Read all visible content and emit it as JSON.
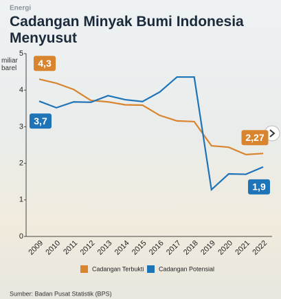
{
  "chart_data": {
    "type": "line",
    "kicker": "Energi",
    "title": "Cadangan Minyak Bumi Indonesia Menyusut",
    "y_label": "miliar barel",
    "source": "Sumber: Badan Pusat Statistik (BPS)",
    "categories": [
      "2009",
      "2010",
      "2011",
      "2012",
      "2013",
      "2014",
      "2015",
      "2016",
      "2017",
      "2018",
      "2019",
      "2020",
      "2021",
      "2022"
    ],
    "series": [
      {
        "name": "Cadangan Terbukti",
        "color": "#d9852f",
        "values": [
          4.3,
          4.19,
          4.02,
          3.72,
          3.68,
          3.6,
          3.59,
          3.31,
          3.16,
          3.14,
          2.48,
          2.44,
          2.24,
          2.27
        ],
        "value_labels": [
          "4,3",
          null,
          null,
          null,
          null,
          null,
          null,
          null,
          null,
          null,
          null,
          null,
          null,
          "2,27"
        ]
      },
      {
        "name": "Cadangan Potensial",
        "color": "#1f73b7",
        "values": [
          3.7,
          3.52,
          3.68,
          3.67,
          3.85,
          3.74,
          3.69,
          3.95,
          4.36,
          4.36,
          1.28,
          1.71,
          1.7,
          1.9
        ],
        "value_labels": [
          "3,7",
          null,
          null,
          null,
          null,
          null,
          null,
          null,
          null,
          null,
          null,
          null,
          null,
          "1,9"
        ]
      }
    ],
    "ylim": [
      0,
      5
    ],
    "yticks": [
      0,
      1,
      2,
      3,
      4,
      5
    ]
  }
}
